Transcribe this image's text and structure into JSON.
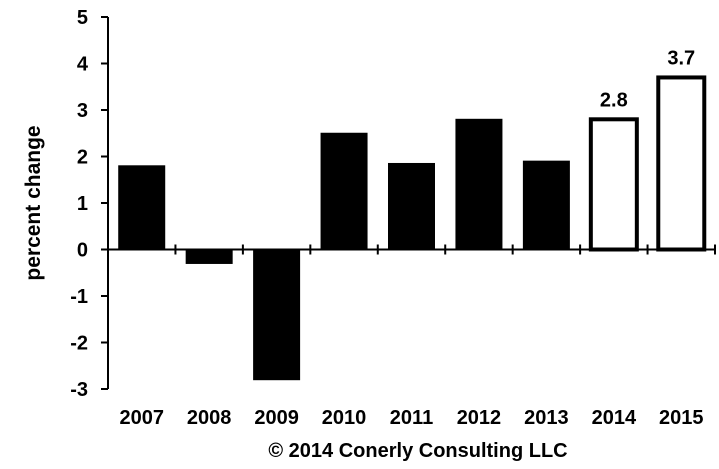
{
  "chart_data": {
    "type": "bar",
    "categories": [
      "2007",
      "2008",
      "2009",
      "2010",
      "2011",
      "2012",
      "2013",
      "2014",
      "2015"
    ],
    "values": [
      1.8,
      -0.3,
      -2.8,
      2.5,
      1.85,
      2.8,
      1.9,
      2.8,
      3.7
    ],
    "forecast": [
      false,
      false,
      false,
      false,
      false,
      false,
      false,
      true,
      true
    ],
    "data_labels": [
      "",
      "",
      "",
      "",
      "",
      "",
      "",
      "2.8",
      "3.7"
    ],
    "title": "",
    "xlabel": "",
    "ylabel": "percent change",
    "ylim": [
      -3,
      5
    ],
    "yticks": [
      5,
      4,
      3,
      2,
      1,
      0,
      -1,
      -2,
      -3
    ],
    "grid": false,
    "colors": {
      "actual_fill": "#000000",
      "forecast_fill": "#ffffff",
      "stroke": "#000000"
    }
  },
  "caption": "© 2014 Conerly Consulting LLC"
}
